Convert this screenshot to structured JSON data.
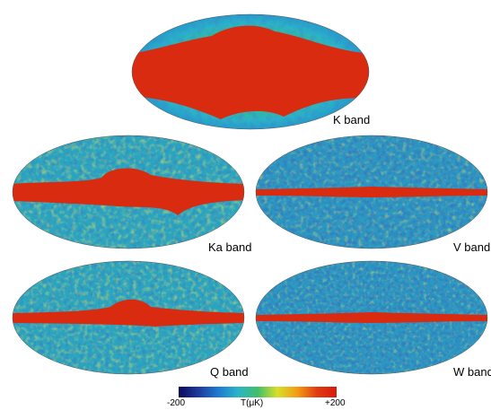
{
  "maps": [
    {
      "id": "k",
      "label": "K band",
      "galaxy_level": 1.0
    },
    {
      "id": "ka",
      "label": "Ka band",
      "galaxy_level": 0.7
    },
    {
      "id": "v",
      "label": "V band",
      "galaxy_level": 0.35
    },
    {
      "id": "q",
      "label": "Q band",
      "galaxy_level": 0.55
    },
    {
      "id": "w",
      "label": "W band",
      "galaxy_level": 0.3
    }
  ],
  "colorbar": {
    "min_label": "-200",
    "unit_label": "T(μK)",
    "max_label": "+200",
    "colors": [
      "#0a0a5a",
      "#1e3a9a",
      "#1f7ad0",
      "#2ab4c8",
      "#3fbf6a",
      "#d7df2a",
      "#f39c12",
      "#e03b14",
      "#d91a0b"
    ]
  }
}
